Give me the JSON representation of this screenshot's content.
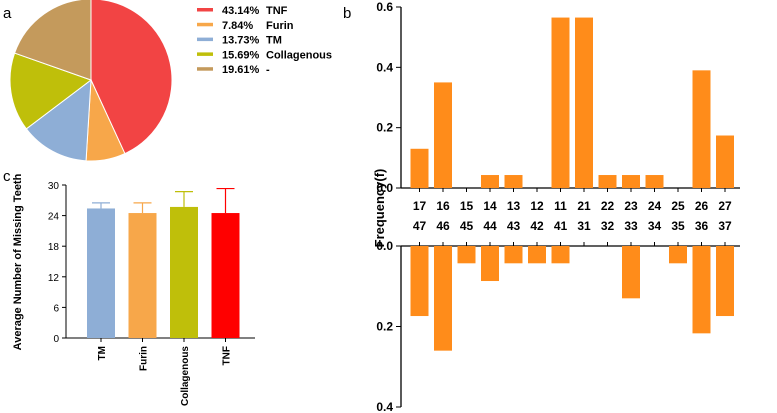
{
  "panels": {
    "a": "a",
    "b": "b",
    "c": "c"
  },
  "colors": {
    "tnf": "#f24444",
    "furin": "#f7a74a",
    "tm": "#8eaed6",
    "collagenous": "#bfbf0a",
    "other": "#c49a5c",
    "bar_b": "#ff8c1a",
    "bar_tm": "#8eaed6",
    "bar_furin": "#f7a74a",
    "bar_collagenous": "#bfbf0a",
    "bar_tnf": "#ff0000"
  },
  "chart_data": [
    {
      "id": "a",
      "type": "pie",
      "title": "",
      "slices": [
        {
          "percent_label": "43.14%",
          "name": "TNF",
          "value": 43.14,
          "color": "#f24444"
        },
        {
          "percent_label": "7.84%",
          "name": "Furin",
          "value": 7.84,
          "color": "#f7a74a"
        },
        {
          "percent_label": "13.73%",
          "name": "TM",
          "value": 13.73,
          "color": "#8eaed6"
        },
        {
          "percent_label": "15.69%",
          "name": "Collagenous",
          "value": 15.69,
          "color": "#bfbf0a"
        },
        {
          "percent_label": "19.61%",
          "name": "-",
          "value": 19.61,
          "color": "#c49a5c"
        }
      ]
    },
    {
      "id": "b",
      "type": "bar",
      "ylabel": "Frequency(f)",
      "color": "#ff8c1a",
      "upper": {
        "ylim": [
          0,
          0.6
        ],
        "ticks": [
          "0.0",
          "0.2",
          "0.4",
          "0.6"
        ],
        "tick_values": [
          0,
          0.2,
          0.4,
          0.6
        ],
        "categories": [
          "17",
          "16",
          "15",
          "14",
          "13",
          "12",
          "11",
          "21",
          "22",
          "23",
          "24",
          "25",
          "26",
          "27"
        ],
        "values": [
          0.13,
          0.35,
          0.0,
          0.043,
          0.043,
          0.0,
          0.565,
          0.565,
          0.043,
          0.043,
          0.043,
          0.0,
          0.39,
          0.174
        ]
      },
      "lower": {
        "ylim": [
          0,
          0.4
        ],
        "ticks": [
          "0.0",
          "0.2",
          "0.4"
        ],
        "tick_values": [
          0,
          0.2,
          0.4
        ],
        "categories": [
          "47",
          "46",
          "45",
          "44",
          "43",
          "42",
          "41",
          "31",
          "32",
          "33",
          "34",
          "35",
          "36",
          "37"
        ],
        "values": [
          0.174,
          0.26,
          0.043,
          0.087,
          0.043,
          0.043,
          0.043,
          0.0,
          0.0,
          0.13,
          0.0,
          0.043,
          0.217,
          0.174
        ]
      }
    },
    {
      "id": "c",
      "type": "bar",
      "ylabel": "Average Number of Missing Teeth",
      "ylim": [
        0,
        30
      ],
      "ticks": [
        "0",
        "6",
        "12",
        "18",
        "24",
        "30"
      ],
      "tick_values": [
        0,
        6,
        12,
        18,
        24,
        30
      ],
      "categories": [
        "TM",
        "Furin",
        "Collagenous",
        "TNF"
      ],
      "values": [
        25.4,
        24.5,
        25.7,
        24.5
      ],
      "errors": [
        1.1,
        2.0,
        3.0,
        4.8
      ],
      "colors": [
        "#8eaed6",
        "#f7a74a",
        "#bfbf0a",
        "#ff0000"
      ]
    }
  ]
}
